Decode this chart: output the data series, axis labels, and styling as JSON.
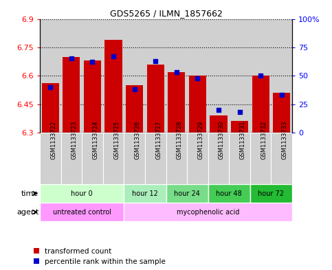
{
  "title": "GDS5265 / ILMN_1857662",
  "samples": [
    "GSM1133722",
    "GSM1133723",
    "GSM1133724",
    "GSM1133725",
    "GSM1133726",
    "GSM1133727",
    "GSM1133728",
    "GSM1133729",
    "GSM1133730",
    "GSM1133731",
    "GSM1133732",
    "GSM1133733"
  ],
  "transformed_count": [
    6.56,
    6.7,
    6.68,
    6.79,
    6.55,
    6.66,
    6.62,
    6.6,
    6.39,
    6.36,
    6.6,
    6.51
  ],
  "percentile_rank": [
    40,
    65,
    62,
    67,
    38,
    63,
    53,
    48,
    20,
    18,
    50,
    33
  ],
  "bar_bottom": 6.3,
  "ylim": [
    6.3,
    6.9
  ],
  "ylim_right": [
    0,
    100
  ],
  "yticks_left": [
    6.3,
    6.45,
    6.6,
    6.75,
    6.9
  ],
  "yticks_right": [
    0,
    25,
    50,
    75,
    100
  ],
  "ytick_labels_left": [
    "6.3",
    "6.45",
    "6.6",
    "6.75",
    "6.9"
  ],
  "ytick_labels_right": [
    "0",
    "25",
    "50",
    "75",
    "100%"
  ],
  "bar_color": "#cc0000",
  "dot_color": "#0000cc",
  "col_bg_color": "#d0d0d0",
  "time_groups": [
    {
      "label": "hour 0",
      "start": 0,
      "end": 4,
      "color": "#ccffcc"
    },
    {
      "label": "hour 12",
      "start": 4,
      "end": 6,
      "color": "#aaeebb"
    },
    {
      "label": "hour 24",
      "start": 6,
      "end": 8,
      "color": "#77dd88"
    },
    {
      "label": "hour 48",
      "start": 8,
      "end": 10,
      "color": "#44cc55"
    },
    {
      "label": "hour 72",
      "start": 10,
      "end": 12,
      "color": "#22bb33"
    }
  ],
  "agent_groups": [
    {
      "label": "untreated control",
      "start": 0,
      "end": 4,
      "color": "#ff99ff"
    },
    {
      "label": "mycophenolic acid",
      "start": 4,
      "end": 12,
      "color": "#ffbbff"
    }
  ],
  "legend_items": [
    {
      "label": "transformed count",
      "color": "#cc0000"
    },
    {
      "label": "percentile rank within the sample",
      "color": "#0000cc"
    }
  ],
  "fig_bg": "#ffffff",
  "plot_bg": "#ffffff"
}
